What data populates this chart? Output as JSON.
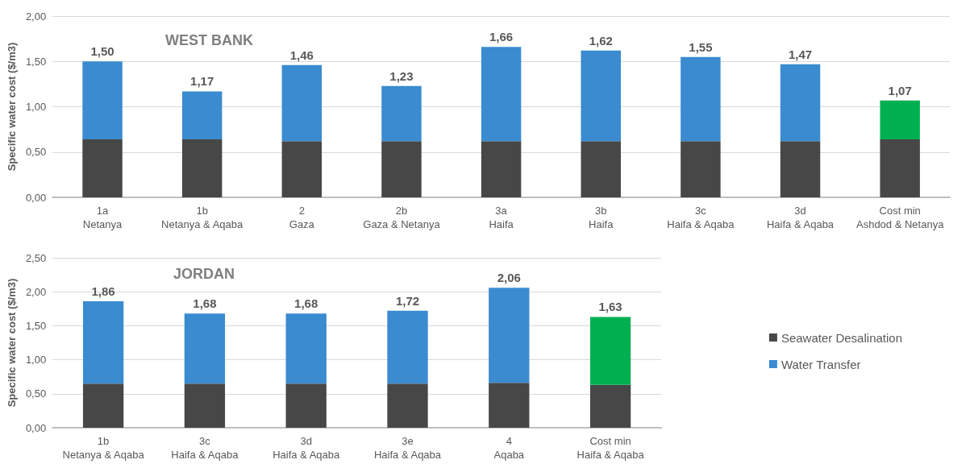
{
  "chart_data": [
    {
      "type": "bar",
      "title": "WEST BANK",
      "ylabel": "Specific water cost ($/m3)",
      "stacked": true,
      "grid": "y",
      "legend": false,
      "categories": [
        "1a\nNetanya",
        "1b\nNetanya & Aqaba",
        "2\nGaza",
        "2b\nGaza & Netanya",
        "3a\nHaifa",
        "3b\nHaifa",
        "3c\nHaifa & Aqaba",
        "3d\nHaifa & Aqaba",
        "Cost min\nAshdod & Netanya"
      ],
      "series": [
        {
          "color": "#474747",
          "values": [
            0.64,
            0.64,
            0.62,
            0.62,
            0.62,
            0.62,
            0.62,
            0.62,
            0.64
          ]
        },
        {
          "color": "#3a8bd0",
          "colors": [
            "#3a8bd0",
            "#3a8bd0",
            "#3a8bd0",
            "#3a8bd0",
            "#3a8bd0",
            "#3a8bd0",
            "#3a8bd0",
            "#3a8bd0",
            "#00b050"
          ],
          "values": [
            0.86,
            0.53,
            0.84,
            0.61,
            1.04,
            1.0,
            0.93,
            0.85,
            0.43
          ]
        }
      ],
      "totals": [
        "1,50",
        "1,17",
        "1,46",
        "1,23",
        "1,66",
        "1,62",
        "1,55",
        "1,47",
        "1,07"
      ],
      "ylim": [
        0,
        2
      ],
      "yticks": [
        {
          "value": 0,
          "label": "0,00"
        },
        {
          "value": 0.5,
          "label": "0,50"
        },
        {
          "value": 1,
          "label": "1,00"
        },
        {
          "value": 1.5,
          "label": "1,50"
        },
        {
          "value": 2,
          "label": "2,00"
        }
      ]
    },
    {
      "type": "bar",
      "title": "JORDAN",
      "ylabel": "Specific water cost ($/m3)",
      "stacked": true,
      "grid": "y",
      "legend": "right",
      "categories": [
        "1b\nNetanya & Aqaba",
        "3c\nHaifa & Aqaba",
        "3d\nHaifa & Aqaba",
        "3e\nHaifa & Aqaba",
        "4\nAqaba",
        "Cost min\nHaifa & Aqaba"
      ],
      "series": [
        {
          "name": "Seawater Desalination",
          "color": "#474747",
          "values": [
            0.65,
            0.65,
            0.65,
            0.65,
            0.66,
            0.63
          ]
        },
        {
          "name": "Water Transfer",
          "color": "#3a8bd0",
          "colors": [
            "#3a8bd0",
            "#3a8bd0",
            "#3a8bd0",
            "#3a8bd0",
            "#3a8bd0",
            "#00b050"
          ],
          "values": [
            1.21,
            1.03,
            1.03,
            1.07,
            1.4,
            1.0
          ]
        }
      ],
      "totals": [
        "1,86",
        "1,68",
        "1,68",
        "1,72",
        "2,06",
        "1,63"
      ],
      "ylim": [
        0,
        2.5
      ],
      "yticks": [
        {
          "value": 0,
          "label": "0,00"
        },
        {
          "value": 0.5,
          "label": "0,50"
        },
        {
          "value": 1,
          "label": "1,00"
        },
        {
          "value": 1.5,
          "label": "1,50"
        },
        {
          "value": 2,
          "label": "2,00"
        },
        {
          "value": 2.5,
          "label": "2,50"
        }
      ]
    }
  ]
}
